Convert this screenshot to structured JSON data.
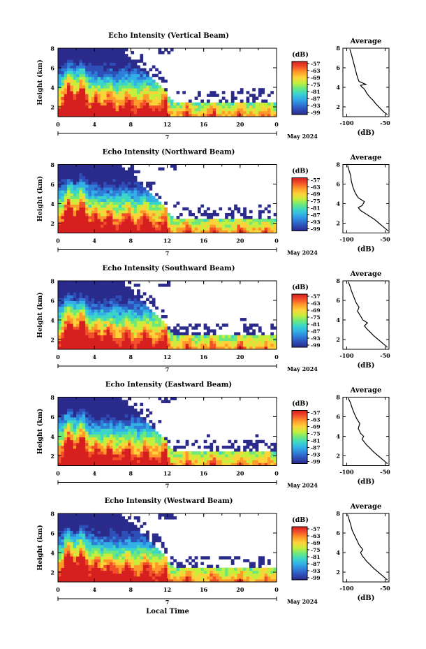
{
  "figure": {
    "xlabel_bottom": "Local Time",
    "date_label": "May 2024",
    "day_label": "7",
    "colorbar_unit": "(dB)",
    "average_title": "Average",
    "average_xlabel": "(dB)"
  },
  "chart_data": [
    {
      "type": "heatmap",
      "title": "Echo Intensity (Vertical Beam)",
      "ylabel": "Height (km)",
      "x_ticks": [
        "0",
        "4",
        "8",
        "12",
        "16",
        "20",
        "0"
      ],
      "y_ticks": [
        "2",
        "4",
        "6",
        "8"
      ],
      "xlim": [
        0,
        24
      ],
      "ylim": [
        1,
        8
      ],
      "colorbar_ticks": [
        "-57",
        "-63",
        "-69",
        "-75",
        "-81",
        "-87",
        "-93",
        "-99"
      ],
      "colorbar_range": [
        -99,
        -57
      ],
      "profile": {
        "title": "Average",
        "xlabel": "(dB)",
        "x_ticks": [
          "-100",
          "-50"
        ],
        "y_ticks": [
          "2",
          "4",
          "6",
          "8"
        ],
        "xlim": [
          -105,
          -45
        ],
        "ylim": [
          1,
          8
        ],
        "x": [
          -47,
          -52,
          -57,
          -62,
          -66,
          -70,
          -74,
          -76,
          -78,
          -80,
          -82,
          -75,
          -84,
          -86,
          -88,
          -90,
          -92,
          -94,
          -96
        ],
        "y": [
          1.2,
          1.5,
          1.9,
          2.3,
          2.7,
          3.0,
          3.4,
          3.7,
          3.9,
          4.0,
          4.2,
          4.3,
          4.6,
          5.0,
          5.6,
          6.2,
          6.8,
          7.4,
          7.9
        ]
      }
    },
    {
      "type": "heatmap",
      "title": "Echo Intensity (Northward Beam)",
      "ylabel": "Height (km)",
      "x_ticks": [
        "0",
        "4",
        "8",
        "12",
        "16",
        "20",
        "0"
      ],
      "y_ticks": [
        "2",
        "4",
        "6",
        "8"
      ],
      "xlim": [
        0,
        24
      ],
      "ylim": [
        1,
        8
      ],
      "colorbar_ticks": [
        "-57",
        "-63",
        "-69",
        "-75",
        "-81",
        "-87",
        "-93",
        "-99"
      ],
      "colorbar_range": [
        -99,
        -57
      ],
      "profile": {
        "title": "Average",
        "xlabel": "(dB)",
        "x_ticks": [
          "-100",
          "-50"
        ],
        "y_ticks": [
          "2",
          "4",
          "6",
          "8"
        ],
        "xlim": [
          -105,
          -45
        ],
        "ylim": [
          1,
          8
        ],
        "x": [
          -46,
          -52,
          -58,
          -64,
          -70,
          -76,
          -82,
          -85,
          -80,
          -77,
          -85,
          -89,
          -92,
          -94,
          -95,
          -97,
          -99
        ],
        "y": [
          1.2,
          1.6,
          2.0,
          2.4,
          2.7,
          3.0,
          3.3,
          3.6,
          3.8,
          4.2,
          4.6,
          5.1,
          5.7,
          6.3,
          6.9,
          7.4,
          7.9
        ]
      }
    },
    {
      "type": "heatmap",
      "title": "Echo Intensity (Southward Beam)",
      "ylabel": "Height (km)",
      "x_ticks": [
        "0",
        "4",
        "8",
        "12",
        "16",
        "20",
        "0"
      ],
      "y_ticks": [
        "2",
        "4",
        "6",
        "8"
      ],
      "xlim": [
        0,
        24
      ],
      "ylim": [
        1,
        8
      ],
      "colorbar_ticks": [
        "-57",
        "-63",
        "-69",
        "-75",
        "-81",
        "-87",
        "-93",
        "-99"
      ],
      "colorbar_range": [
        -99,
        -57
      ],
      "profile": {
        "title": "Average",
        "xlabel": "(dB)",
        "x_ticks": [
          "-100",
          "-50"
        ],
        "y_ticks": [
          "2",
          "4",
          "6",
          "8"
        ],
        "xlim": [
          -105,
          -45
        ],
        "ylim": [
          1,
          8
        ],
        "x": [
          -47,
          -53,
          -59,
          -65,
          -70,
          -74,
          -77,
          -73,
          -79,
          -82,
          -86,
          -84,
          -88,
          -91,
          -94,
          -96,
          -98
        ],
        "y": [
          1.2,
          1.6,
          2.0,
          2.4,
          2.8,
          3.1,
          3.4,
          3.7,
          4.0,
          4.4,
          4.9,
          5.3,
          5.8,
          6.4,
          7.0,
          7.5,
          7.9
        ]
      }
    },
    {
      "type": "heatmap",
      "title": "Echo Intensity (Eastward Beam)",
      "ylabel": "Height (km)",
      "x_ticks": [
        "0",
        "4",
        "8",
        "12",
        "16",
        "20",
        "0"
      ],
      "y_ticks": [
        "2",
        "4",
        "6",
        "8"
      ],
      "xlim": [
        0,
        24
      ],
      "ylim": [
        1,
        8
      ],
      "colorbar_ticks": [
        "-57",
        "-63",
        "-69",
        "-75",
        "-81",
        "-87",
        "-93",
        "-99"
      ],
      "colorbar_range": [
        -99,
        -57
      ],
      "profile": {
        "title": "Average",
        "xlabel": "(dB)",
        "x_ticks": [
          "-100",
          "-50"
        ],
        "y_ticks": [
          "2",
          "4",
          "6",
          "8"
        ],
        "xlim": [
          -105,
          -45
        ],
        "ylim": [
          1,
          8
        ],
        "x": [
          -47,
          -53,
          -59,
          -65,
          -70,
          -74,
          -77,
          -80,
          -78,
          -82,
          -85,
          -83,
          -87,
          -90,
          -93,
          -95,
          -98
        ],
        "y": [
          1.2,
          1.6,
          2.0,
          2.4,
          2.8,
          3.1,
          3.4,
          3.7,
          4.0,
          4.3,
          4.8,
          5.3,
          5.8,
          6.3,
          6.9,
          7.4,
          7.9
        ]
      }
    },
    {
      "type": "heatmap",
      "title": "Echo Intensity (Westward Beam)",
      "ylabel": "Height (km)",
      "x_ticks": [
        "0",
        "4",
        "8",
        "12",
        "16",
        "20",
        "0"
      ],
      "y_ticks": [
        "2",
        "4",
        "6",
        "8"
      ],
      "xlim": [
        0,
        24
      ],
      "ylim": [
        1,
        8
      ],
      "colorbar_ticks": [
        "-57",
        "-63",
        "-69",
        "-75",
        "-81",
        "-87",
        "-93",
        "-99"
      ],
      "colorbar_range": [
        -99,
        -57
      ],
      "profile": {
        "title": "Average",
        "xlabel": "(dB)",
        "x_ticks": [
          "-100",
          "-50"
        ],
        "y_ticks": [
          "2",
          "4",
          "6",
          "8"
        ],
        "xlim": [
          -105,
          -45
        ],
        "ylim": [
          1,
          8
        ],
        "x": [
          -47,
          -53,
          -59,
          -65,
          -70,
          -74,
          -77,
          -80,
          -82,
          -79,
          -84,
          -87,
          -90,
          -93,
          -95,
          -97,
          -99
        ],
        "y": [
          1.2,
          1.6,
          2.0,
          2.4,
          2.8,
          3.1,
          3.4,
          3.7,
          4.0,
          4.3,
          4.8,
          5.3,
          5.8,
          6.3,
          6.9,
          7.4,
          7.9
        ]
      }
    }
  ],
  "colors": {
    "scale": [
      "#2b2b8c",
      "#2f4fb8",
      "#2f7fd9",
      "#33b0e6",
      "#3cd6c8",
      "#6ee87a",
      "#c6ee3c",
      "#ffd23a",
      "#ff9a2a",
      "#f2502a",
      "#d61f1f"
    ],
    "axis": "#000000",
    "background": "#ffffff"
  }
}
